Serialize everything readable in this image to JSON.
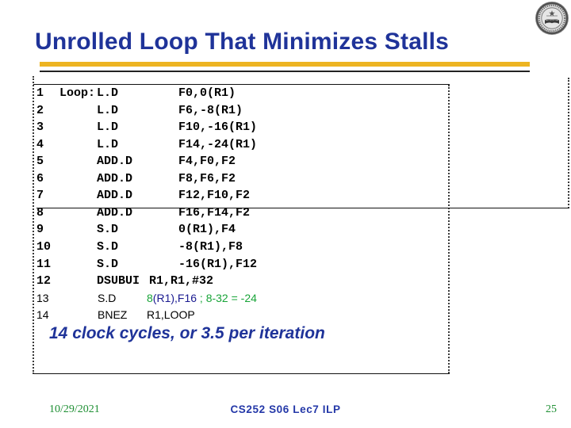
{
  "slide": {
    "title": "Unrolled Loop That Minimizes Stalls",
    "summary": "14 clock cycles, or 3.5 per iteration",
    "footer": {
      "date": "10/29/2021",
      "course": "CS252 S06 Lec7 ILP",
      "page": "25"
    },
    "logo": "university-seal-icon"
  },
  "colors": {
    "title_blue": "#1F3399",
    "footer_blue": "#2438A8",
    "gold_bar": "#EDB421",
    "comment_green": "#18A438",
    "operand_blue": "#1A1A90",
    "date_green": "#1E8F33"
  },
  "code": {
    "lines": [
      {
        "num": "1",
        "label": "Loop:",
        "op": "L.D",
        "operands": "F0,0(R1)",
        "font": "mono"
      },
      {
        "num": "2",
        "label": "",
        "op": "L.D",
        "operands": "F6,-8(R1)",
        "font": "mono"
      },
      {
        "num": "3",
        "label": "",
        "op": "L.D",
        "operands": "F10,-16(R1)",
        "font": "mono"
      },
      {
        "num": "4",
        "label": "",
        "op": "L.D",
        "operands": "F14,-24(R1)",
        "font": "mono"
      },
      {
        "num": "5",
        "label": "",
        "op": "ADD.D",
        "operands": "F4,F0,F2",
        "font": "mono"
      },
      {
        "num": "6",
        "label": "",
        "op": "ADD.D",
        "operands": "F8,F6,F2",
        "font": "mono"
      },
      {
        "num": "7",
        "label": "",
        "op": "ADD.D",
        "operands": "F12,F10,F2",
        "font": "mono"
      },
      {
        "num": "8",
        "label": "",
        "op": "ADD.D",
        "operands": "F16,F14,F2",
        "font": "mono"
      },
      {
        "num": "9",
        "label": "",
        "op": "S.D",
        "operands": "0(R1),F4",
        "font": "mono"
      },
      {
        "num": "10",
        "label": "",
        "op": "S.D",
        "operands": "-8(R1),F8",
        "font": "mono"
      },
      {
        "num": "11",
        "label": "",
        "op": "S.D",
        "operands": "-16(R1),F12",
        "font": "mono"
      },
      {
        "num": "12",
        "label": "",
        "op": "DSUBUI",
        "operands": "R1,R1,#32",
        "font": "mono"
      },
      {
        "num": "13",
        "label": "",
        "op": "S.D",
        "font": "sans",
        "operand_parts": [
          {
            "text": "8",
            "color": "green"
          },
          {
            "text": "(R1),F16",
            "color": "blue"
          },
          {
            "text": " ; 8-32 = -24",
            "color": "green"
          }
        ]
      },
      {
        "num": "14",
        "label": "",
        "op": "BNEZ",
        "operands": "R1,LOOP",
        "font": "sans"
      }
    ]
  }
}
